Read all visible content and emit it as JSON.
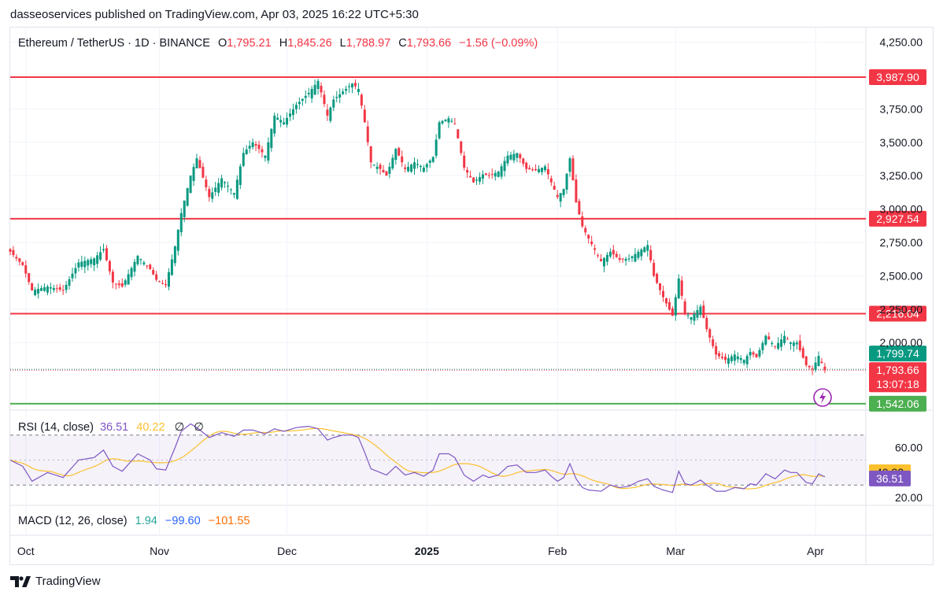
{
  "publisher": "dasseoservices published on TradingView.com, Apr 03, 2025 16:22 UTC+5:30",
  "legend": {
    "symbol": "Ethereum / TetherUS · 1D · BINANCE",
    "o_label": "O",
    "o_value": "1,795.21",
    "h_label": "H",
    "h_value": "1,845.26",
    "l_label": "L",
    "l_value": "1,788.97",
    "c_label": "C",
    "c_value": "1,793.66",
    "change": "−1.56 (−0.09%)"
  },
  "colors": {
    "up": "#089981",
    "down": "#f23645",
    "level_red": "#f23645",
    "level_green": "#4caf50",
    "rsi": "#7e57c2",
    "rsi_ma": "#fbc02d",
    "rsi_band": "#7e57c2",
    "macd": "#2962ff",
    "signal": "#ff6d00",
    "hist": "#26a69a",
    "grid": "#f0f3fa"
  },
  "icons": {
    "alert": "lightning-alert-icon",
    "logo": "tradingview-logo-icon"
  },
  "footer": {
    "brand": "TradingView"
  },
  "chart_data": {
    "type": "candlestick",
    "x_labels": [
      "Oct",
      "Nov",
      "Dec",
      "2025",
      "Feb",
      "Mar",
      "Apr"
    ],
    "y_ticks": [
      "4,250.00",
      "3,750.00",
      "3,500.00",
      "3,250.00",
      "3,000.00",
      "2,750.00",
      "2,500.00",
      "2,250.00",
      "2,000.00"
    ],
    "ylim": [
      1500,
      4330
    ],
    "levels": [
      {
        "value": 3987.9,
        "label": "3,987.90",
        "color": "red"
      },
      {
        "value": 2927.54,
        "label": "2,927.54",
        "color": "red"
      },
      {
        "value": 2216.04,
        "label": "2,216.04",
        "color": "red"
      },
      {
        "value": 1542.06,
        "label": "1,542.06",
        "color": "green"
      }
    ],
    "price_labels": {
      "high_line": "1,799.74",
      "last": "1,793.66",
      "countdown": "13:07:18"
    },
    "close_anchors": [
      [
        0,
        2680
      ],
      [
        4,
        2580
      ],
      [
        7,
        2390
      ],
      [
        12,
        2420
      ],
      [
        17,
        2390
      ],
      [
        22,
        2600
      ],
      [
        27,
        2630
      ],
      [
        30,
        2700
      ],
      [
        33,
        2450
      ],
      [
        36,
        2420
      ],
      [
        41,
        2650
      ],
      [
        45,
        2550
      ],
      [
        47,
        2470
      ],
      [
        50,
        2430
      ],
      [
        53,
        2720
      ],
      [
        55,
        2970
      ],
      [
        58,
        3250
      ],
      [
        60,
        3380
      ],
      [
        64,
        3090
      ],
      [
        68,
        3230
      ],
      [
        72,
        3120
      ],
      [
        75,
        3420
      ],
      [
        78,
        3500
      ],
      [
        82,
        3400
      ],
      [
        85,
        3700
      ],
      [
        88,
        3650
      ],
      [
        92,
        3780
      ],
      [
        96,
        3870
      ],
      [
        99,
        3960
      ],
      [
        102,
        3700
      ],
      [
        104,
        3820
      ],
      [
        107,
        3880
      ],
      [
        110,
        3940
      ],
      [
        112,
        3900
      ],
      [
        114,
        3650
      ],
      [
        116,
        3350
      ],
      [
        119,
        3300
      ],
      [
        121,
        3250
      ],
      [
        124,
        3450
      ],
      [
        127,
        3300
      ],
      [
        130,
        3350
      ],
      [
        133,
        3310
      ],
      [
        136,
        3390
      ],
      [
        138,
        3650
      ],
      [
        141,
        3680
      ],
      [
        143,
        3640
      ],
      [
        146,
        3310
      ],
      [
        149,
        3200
      ],
      [
        152,
        3260
      ],
      [
        154,
        3250
      ],
      [
        157,
        3280
      ],
      [
        160,
        3400
      ],
      [
        163,
        3420
      ],
      [
        166,
        3300
      ],
      [
        169,
        3290
      ],
      [
        172,
        3320
      ],
      [
        174,
        3200
      ],
      [
        176,
        3090
      ],
      [
        178,
        3150
      ],
      [
        180,
        3380
      ],
      [
        182,
        3050
      ],
      [
        184,
        2870
      ],
      [
        186,
        2780
      ],
      [
        190,
        2610
      ],
      [
        193,
        2680
      ],
      [
        196,
        2620
      ],
      [
        199,
        2630
      ],
      [
        202,
        2680
      ],
      [
        205,
        2730
      ],
      [
        207,
        2500
      ],
      [
        210,
        2340
      ],
      [
        213,
        2200
      ],
      [
        215,
        2480
      ],
      [
        217,
        2220
      ],
      [
        219,
        2190
      ],
      [
        222,
        2270
      ],
      [
        224,
        2100
      ],
      [
        227,
        1910
      ],
      [
        230,
        1870
      ],
      [
        233,
        1910
      ],
      [
        236,
        1870
      ],
      [
        238,
        1930
      ],
      [
        240,
        1890
      ],
      [
        243,
        2050
      ],
      [
        246,
        1970
      ],
      [
        249,
        2050
      ],
      [
        251,
        2000
      ],
      [
        253,
        2000
      ],
      [
        256,
        1830
      ],
      [
        258,
        1800
      ],
      [
        260,
        1900
      ],
      [
        262,
        1793.66
      ]
    ],
    "rsi": {
      "label": "RSI (14, close)",
      "value": "36.51",
      "ma_value": "40.22",
      "div1": "∅",
      "div2": "∅",
      "ylim": [
        15,
        90
      ],
      "band": [
        30,
        70
      ],
      "ticks": [
        "60.00",
        "20.00"
      ],
      "anchors": [
        [
          0,
          50
        ],
        [
          4,
          45
        ],
        [
          7,
          33
        ],
        [
          12,
          40
        ],
        [
          17,
          36
        ],
        [
          22,
          50
        ],
        [
          27,
          52
        ],
        [
          30,
          58
        ],
        [
          33,
          45
        ],
        [
          36,
          41
        ],
        [
          41,
          55
        ],
        [
          45,
          50
        ],
        [
          47,
          43
        ],
        [
          50,
          42
        ],
        [
          53,
          60
        ],
        [
          55,
          73
        ],
        [
          58,
          79
        ],
        [
          60,
          76
        ],
        [
          64,
          68
        ],
        [
          68,
          72
        ],
        [
          72,
          69
        ],
        [
          75,
          74
        ],
        [
          78,
          74
        ],
        [
          82,
          71
        ],
        [
          85,
          75
        ],
        [
          88,
          73
        ],
        [
          92,
          76
        ],
        [
          96,
          77
        ],
        [
          99,
          75
        ],
        [
          102,
          66
        ],
        [
          104,
          68
        ],
        [
          107,
          70
        ],
        [
          110,
          70
        ],
        [
          112,
          68
        ],
        [
          114,
          56
        ],
        [
          116,
          43
        ],
        [
          119,
          40
        ],
        [
          121,
          38
        ],
        [
          124,
          45
        ],
        [
          127,
          38
        ],
        [
          130,
          40
        ],
        [
          133,
          37
        ],
        [
          136,
          42
        ],
        [
          138,
          55
        ],
        [
          141,
          55
        ],
        [
          143,
          52
        ],
        [
          146,
          38
        ],
        [
          149,
          33
        ],
        [
          152,
          38
        ],
        [
          154,
          36
        ],
        [
          157,
          38
        ],
        [
          160,
          45
        ],
        [
          163,
          46
        ],
        [
          166,
          40
        ],
        [
          169,
          40
        ],
        [
          172,
          42
        ],
        [
          174,
          37
        ],
        [
          176,
          33
        ],
        [
          178,
          36
        ],
        [
          180,
          47
        ],
        [
          182,
          35
        ],
        [
          184,
          28
        ],
        [
          186,
          26
        ],
        [
          190,
          25
        ],
        [
          193,
          30
        ],
        [
          196,
          28
        ],
        [
          199,
          29
        ],
        [
          202,
          33
        ],
        [
          205,
          35
        ],
        [
          207,
          29
        ],
        [
          210,
          26
        ],
        [
          213,
          24
        ],
        [
          215,
          41
        ],
        [
          217,
          31
        ],
        [
          219,
          30
        ],
        [
          222,
          34
        ],
        [
          224,
          30
        ],
        [
          227,
          25
        ],
        [
          230,
          25
        ],
        [
          233,
          28
        ],
        [
          236,
          27
        ],
        [
          238,
          31
        ],
        [
          240,
          30
        ],
        [
          243,
          39
        ],
        [
          246,
          35
        ],
        [
          249,
          42
        ],
        [
          251,
          40
        ],
        [
          253,
          40
        ],
        [
          256,
          32
        ],
        [
          258,
          31
        ],
        [
          260,
          39
        ],
        [
          262,
          36.51
        ]
      ]
    },
    "macd": {
      "label": "MACD (12, 26, close)",
      "hist": "1.94",
      "macd": "−99.60",
      "signal": "−101.55"
    }
  }
}
